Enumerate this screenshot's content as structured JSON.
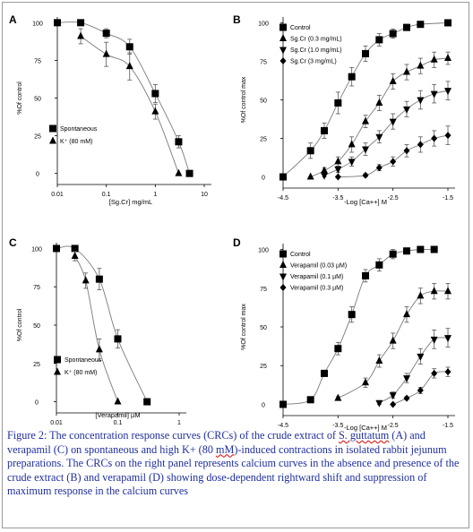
{
  "caption": {
    "text_before_species": "Figure 2: The concentration response curves (CRCs) of the crude extract of ",
    "species": "S. guttatum",
    "text_mid1": " (A) and verapamil (C) on spontaneous and high K+ (80 ",
    "unit": "mM",
    "text_after": ")-induced contractions in isolated rabbit jejunum preparations. The CRCs on the right panel represents calcium curves in the absence and presence of the crude extract (B) and verapamil (D) showing dose-dependent rightward shift and suppression of maximum response in the calcium curves"
  },
  "chart_data": [
    {
      "panel": "A",
      "type": "scatter",
      "xscale": "log",
      "xlabel": "[Sg.Cr] mg/mL",
      "ylabel": "%Of control",
      "xticks": [
        "0.01",
        "0.1",
        "1",
        "10"
      ],
      "yticks": [
        "100",
        "75",
        "50",
        "25",
        "0"
      ],
      "xlim": [
        0.01,
        10
      ],
      "ylim": [
        0,
        100
      ],
      "legend_position": "bottom-left",
      "series": [
        {
          "name": "Spontaneous",
          "marker": "square",
          "x": [
            0.01,
            0.03,
            0.1,
            0.3,
            1,
            3,
            5
          ],
          "y": [
            100,
            100,
            93,
            84,
            53,
            21,
            0
          ],
          "err": [
            0,
            0,
            3,
            5,
            6,
            4,
            0
          ]
        },
        {
          "name": "K⁺ (80 mM)",
          "marker": "triangle",
          "x": [
            0.03,
            0.1,
            0.3,
            1,
            3
          ],
          "y": [
            91,
            79,
            71,
            41,
            0
          ],
          "err": [
            5,
            8,
            9,
            5,
            0
          ]
        }
      ]
    },
    {
      "panel": "B",
      "type": "scatter",
      "xlabel": "-Log [Ca++] M",
      "ylabel": "%Of control max",
      "xticks": [
        "-4.5",
        "-3.5",
        "-2.5",
        "-1.5"
      ],
      "yticks": [
        "100",
        "75",
        "50",
        "25",
        "0"
      ],
      "xlim": [
        -4.5,
        -1.5
      ],
      "ylim": [
        0,
        100
      ],
      "legend_position": "top-left",
      "series": [
        {
          "name": "Control",
          "marker": "square",
          "x": [
            -4.5,
            -4.0,
            -3.75,
            -3.5,
            -3.25,
            -3.0,
            -2.75,
            -2.5,
            -2.25,
            -2.0,
            -1.5
          ],
          "y": [
            0,
            17,
            30,
            48,
            65,
            80,
            89,
            93,
            97,
            99,
            100
          ],
          "err": [
            0,
            5,
            5,
            7,
            6,
            5,
            4,
            3,
            2,
            1,
            0
          ]
        },
        {
          "name": "Sg.Cr (0.3 mg/mL)",
          "marker": "triangle",
          "x": [
            -4.0,
            -3.75,
            -3.5,
            -3.25,
            -3.0,
            -2.75,
            -2.5,
            -2.25,
            -2.0,
            -1.75,
            -1.5
          ],
          "y": [
            0,
            4,
            10,
            21,
            36,
            48,
            62,
            68,
            72,
            76,
            77
          ],
          "err": [
            0,
            2,
            3,
            5,
            4,
            5,
            5,
            5,
            5,
            5,
            4
          ]
        },
        {
          "name": "Sg.Cr (1.0 mg/mL)",
          "marker": "triangle-down",
          "x": [
            -3.75,
            -3.5,
            -3.25,
            -3.0,
            -2.75,
            -2.5,
            -2.25,
            -2.0,
            -1.75,
            -1.5
          ],
          "y": [
            1,
            5,
            10,
            18,
            26,
            36,
            44,
            50,
            54,
            56
          ],
          "err": [
            1,
            2,
            3,
            4,
            4,
            5,
            5,
            6,
            6,
            6
          ]
        },
        {
          "name": "Sg.Cr (3 mg/mL)",
          "marker": "diamond",
          "x": [
            -3.5,
            -3.0,
            -2.75,
            -2.5,
            -2.25,
            -2.0,
            -1.75,
            -1.5
          ],
          "y": [
            0,
            1,
            6,
            10,
            17,
            21,
            25,
            27
          ],
          "err": [
            0,
            1,
            2,
            3,
            4,
            5,
            5,
            6
          ]
        }
      ]
    },
    {
      "panel": "C",
      "type": "scatter",
      "xscale": "log",
      "xlabel": "[Verapamil] µM",
      "ylabel": "%Of control",
      "xticks": [
        "0.01",
        "0.1",
        "1"
      ],
      "yticks": [
        "100",
        "75",
        "50",
        "25",
        "0"
      ],
      "xlim": [
        0.01,
        1
      ],
      "ylim": [
        0,
        100
      ],
      "legend_position": "bottom-left",
      "series": [
        {
          "name": "Spontaneous",
          "marker": "square",
          "x": [
            0.01,
            0.02,
            0.05,
            0.1,
            0.3
          ],
          "y": [
            100,
            100,
            80,
            41,
            0
          ],
          "err": [
            0,
            1,
            7,
            6,
            0
          ]
        },
        {
          "name": "K⁺ (80 mM)",
          "marker": "triangle",
          "x": [
            0.02,
            0.03,
            0.05,
            0.1
          ],
          "y": [
            95,
            79,
            34,
            0
          ],
          "err": [
            3,
            5,
            7,
            0
          ]
        }
      ]
    },
    {
      "panel": "D",
      "type": "scatter",
      "xlabel": "-Log [Ca++] M",
      "ylabel": "%Of control max",
      "xticks": [
        "-4.5",
        "-3.5",
        "-2.5",
        "-1.5"
      ],
      "yticks": [
        "100",
        "75",
        "50",
        "25",
        "0"
      ],
      "xlim": [
        -4.5,
        -1.5
      ],
      "ylim": [
        0,
        100
      ],
      "legend_position": "top-left",
      "series": [
        {
          "name": "Control",
          "marker": "square",
          "x": [
            -4.5,
            -4.0,
            -3.75,
            -3.5,
            -3.25,
            -3.0,
            -2.75,
            -2.5,
            -2.25,
            -2.0,
            -1.75
          ],
          "y": [
            0,
            3,
            20,
            36,
            58,
            83,
            90,
            97,
            99,
            100,
            100
          ],
          "err": [
            0,
            1,
            2,
            4,
            5,
            4,
            4,
            3,
            2,
            1,
            0
          ]
        },
        {
          "name": "Verapamil (0.03 µM)",
          "marker": "triangle",
          "x": [
            -3.5,
            -3.0,
            -2.75,
            -2.5,
            -2.25,
            -2.0,
            -1.75,
            -1.5
          ],
          "y": [
            4,
            14,
            28,
            41,
            58,
            70,
            73,
            73
          ],
          "err": [
            1,
            3,
            4,
            5,
            5,
            5,
            5,
            5
          ]
        },
        {
          "name": "Verapamil (0.1 µM)",
          "marker": "triangle-down",
          "x": [
            -2.75,
            -2.5,
            -2.25,
            -2.0,
            -1.75,
            -1.5
          ],
          "y": [
            1,
            6,
            17,
            31,
            42,
            43
          ],
          "err": [
            1,
            2,
            3,
            5,
            6,
            6
          ]
        },
        {
          "name": "Verapamil (0.3 µM)",
          "marker": "diamond",
          "x": [
            -2.5,
            -2.25,
            -2.0,
            -1.75,
            -1.5
          ],
          "y": [
            0,
            4,
            9,
            20,
            21
          ],
          "err": [
            0,
            1,
            2,
            3,
            3
          ]
        }
      ]
    }
  ]
}
